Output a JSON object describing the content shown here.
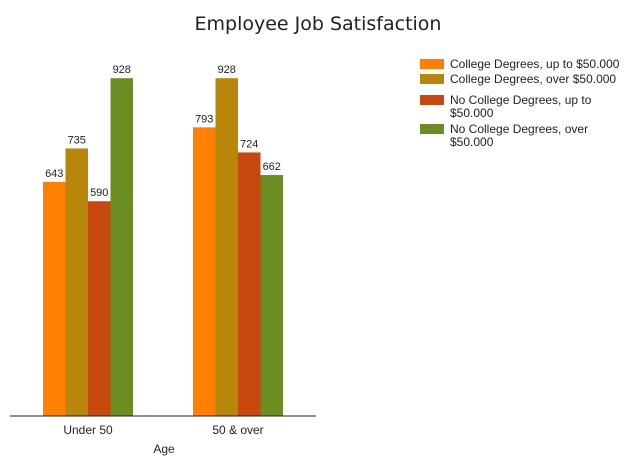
{
  "chart_data": {
    "type": "bar",
    "title": "Employee Job Satisfaction",
    "xlabel": "Age",
    "ylabel": "",
    "categories": [
      "Under 50",
      "50 & over"
    ],
    "ylim": [
      0,
      1000
    ],
    "grid": false,
    "legend_position": "top-right",
    "series": [
      {
        "name": "College Degrees, up to $50.000",
        "legend_lines": [
          "College Degrees, up to $50.000"
        ],
        "values": [
          643,
          793
        ],
        "color": "#ff8000"
      },
      {
        "name": "College Degrees, over $50.000",
        "legend_lines": [
          "College Degrees, over $50.000"
        ],
        "values": [
          735,
          928
        ],
        "color": "#b8860b"
      },
      {
        "name": "No College Degrees, up to $50.000",
        "legend_lines": [
          "No College Degrees, up to",
          "$50.000"
        ],
        "values": [
          590,
          724
        ],
        "color": "#c84810"
      },
      {
        "name": "No College Degrees, over $50.000",
        "legend_lines": [
          "No College Degrees, over",
          "$50.000"
        ],
        "values": [
          928,
          662
        ],
        "color": "#6b8e23"
      }
    ]
  }
}
